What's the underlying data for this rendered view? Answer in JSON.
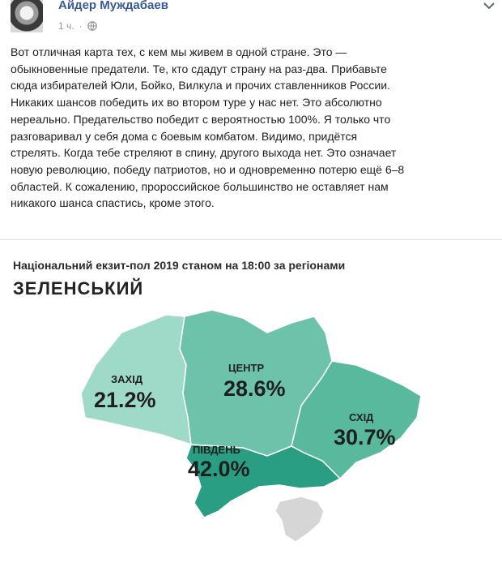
{
  "post": {
    "author": "Айдер Муждабаев",
    "time": "1 ч.",
    "text": "Вот отличная карта тех, с кем мы живем в одной стране. Это —\nобыкновенные предатели. Те, кто сдадут страну на раз-два. Прибавьте\nсюда избирателей Юли, Бойко, Вилкула и прочих ставленников России.\nНикаких шансов победить их во втором туре у нас нет. Это абсолютно\nнереально. Предательство победит с вероятностью 100%. Я только что\nразговаривал у себя дома с боевым комбатом. Видимо, придётся\nстрелять. Когда тебе стреляют в спину, другого выхода нет. Это означает\nновую революцию, победу патриотов, но и одновременно потерю ещё 6–8\nобластей. К сожалению, пророссийское большинство не оставляет нам\nникакого шанса спастись, кроме этого."
  },
  "map": {
    "subtitle": "Національний екзит-пол 2019 станом на 18:00 за регіонами",
    "title": "ЗЕЛЕНСЬКИЙ",
    "regions": [
      {
        "name": "ЗАХІД",
        "value": "21.2%",
        "color": "#9fd9c8"
      },
      {
        "name": "ЦЕНТР",
        "value": "28.6%",
        "color": "#6cc3aa"
      },
      {
        "name": "СХІД",
        "value": "30.7%",
        "color": "#58b99c"
      },
      {
        "name": "ПІВДЕНЬ",
        "value": "42.0%",
        "color": "#2a9e82"
      }
    ],
    "crimea_color": "#d6d6d6"
  },
  "icons": {
    "globe": "globe-icon",
    "menu": "chevron-down-icon"
  }
}
